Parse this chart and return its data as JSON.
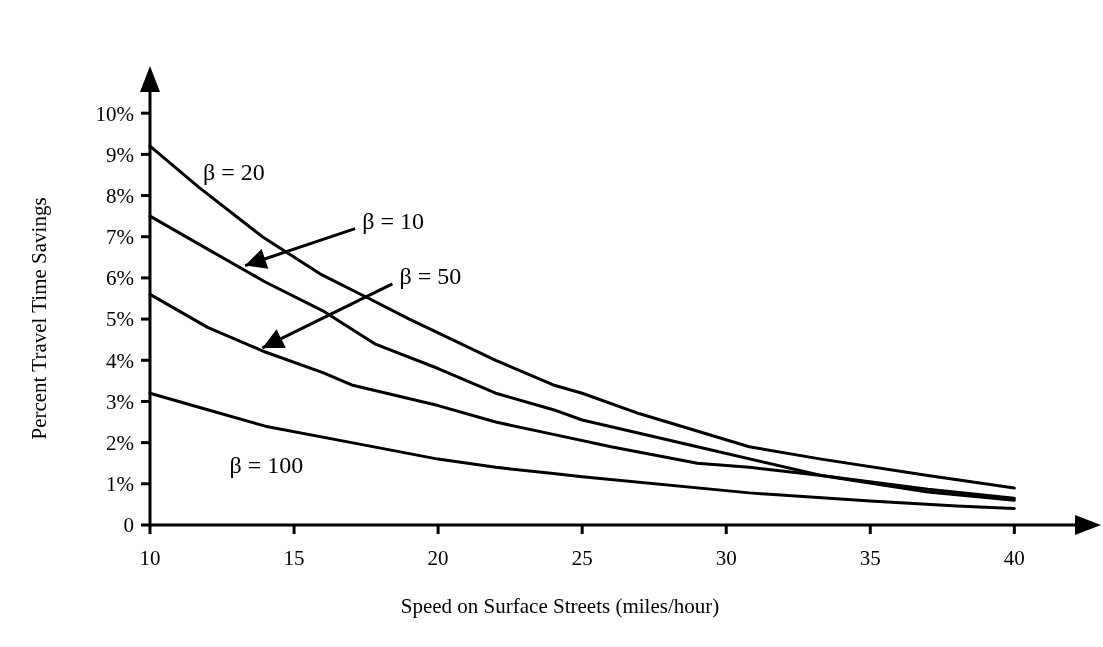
{
  "chart_data": {
    "type": "line",
    "xlabel": "Speed on Surface Streets (miles/hour)",
    "ylabel": "Percent Travel Time Savings",
    "xlim": [
      10,
      42.8
    ],
    "xticks": [
      10,
      15,
      20,
      25,
      30,
      35,
      40
    ],
    "ylim": [
      0,
      11
    ],
    "yticks": [
      0,
      {
        "value": 1,
        "label": "1%"
      },
      {
        "value": 2,
        "label": "2%"
      },
      {
        "value": 3,
        "label": "3%"
      },
      {
        "value": 4,
        "label": "4%"
      },
      {
        "value": 5,
        "label": "5%"
      },
      {
        "value": 6,
        "label": "6%"
      },
      {
        "value": 7,
        "label": "7%"
      },
      {
        "value": 8,
        "label": "8%"
      },
      {
        "value": 9,
        "label": "9%"
      },
      {
        "value": 10,
        "label": "10%"
      }
    ],
    "marker": "none",
    "line_style": "solid",
    "series": [
      {
        "color": "#000000",
        "x": [
          10,
          11.7,
          13.9,
          15.9,
          17.6,
          19,
          22,
          24,
          25,
          27,
          30.8,
          33.3,
          37,
          40
        ],
        "values": [
          9.2,
          8.2,
          7.0,
          6.1,
          5.5,
          5.0,
          4.0,
          3.4,
          3.2,
          2.7,
          1.9,
          1.6,
          1.2,
          0.9
        ]
      },
      {
        "color": "#000000",
        "x": [
          10,
          12,
          14,
          16,
          17.8,
          20,
          22,
          24,
          25,
          29,
          33.3,
          37,
          40
        ],
        "values": [
          7.5,
          6.7,
          5.9,
          5.2,
          4.4,
          3.8,
          3.2,
          2.8,
          2.55,
          1.9,
          1.2,
          0.87,
          0.65
        ]
      },
      {
        "color": "#000000",
        "x": [
          10,
          12,
          14,
          16,
          17,
          20,
          22,
          24,
          26,
          29,
          30.8,
          33.3,
          37,
          40
        ],
        "values": [
          5.6,
          4.8,
          4.2,
          3.7,
          3.4,
          2.9,
          2.5,
          2.2,
          1.9,
          1.5,
          1.4,
          1.2,
          0.8,
          0.6
        ]
      },
      {
        "color": "#000000",
        "x": [
          10,
          12,
          14,
          17,
          20,
          22,
          24,
          25,
          30.8,
          35,
          38,
          40
        ],
        "values": [
          3.2,
          2.8,
          2.4,
          2.0,
          1.6,
          1.4,
          1.25,
          1.17,
          0.78,
          0.58,
          0.46,
          0.4
        ]
      }
    ],
    "annotations": [
      {
        "text": "β = 20",
        "x": 11,
        "y": 8.7
      },
      {
        "text": "β = 10",
        "x": 13.3,
        "y": 6.3
      },
      {
        "text": "β = 50",
        "x": 13.9,
        "y": 4.3
      },
      {
        "text": "β = 100",
        "x": 13,
        "y": 2.55
      }
    ]
  }
}
